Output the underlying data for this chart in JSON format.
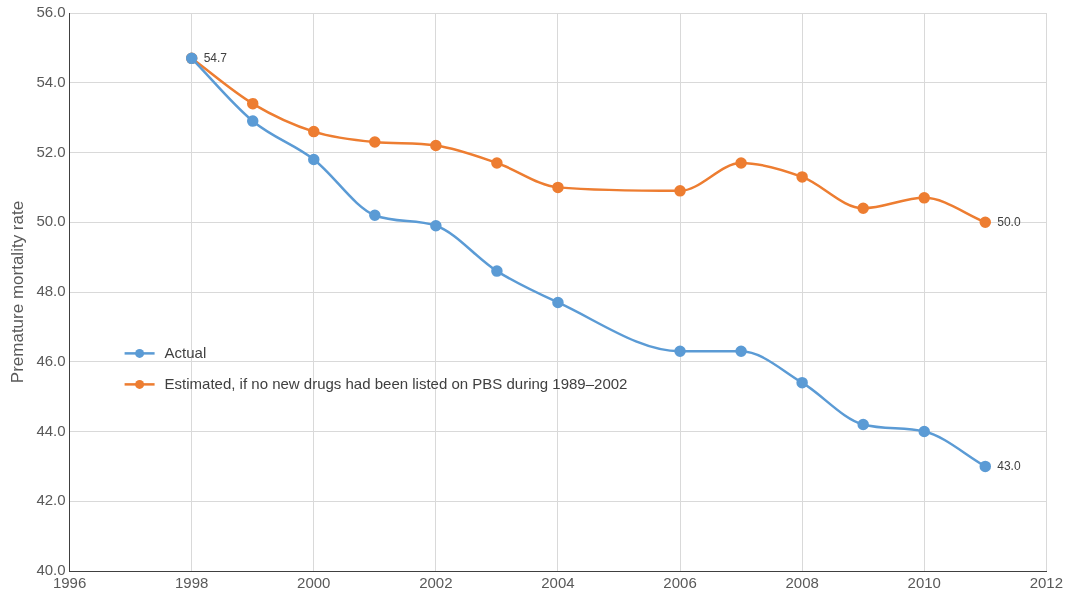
{
  "chart_data": {
    "type": "line",
    "ylabel": "Premature mortality rate",
    "x": [
      1998,
      1999,
      2000,
      2001,
      2002,
      2003,
      2004,
      2006,
      2007,
      2008,
      2009,
      2010,
      2011
    ],
    "series": [
      {
        "name": "Actual",
        "color": "#5b9bd5",
        "values": [
          54.7,
          52.9,
          51.8,
          50.2,
          49.9,
          48.6,
          47.7,
          46.3,
          46.3,
          45.4,
          44.2,
          44.0,
          43.0
        ],
        "value_labels": [
          null,
          null,
          null,
          null,
          null,
          null,
          null,
          null,
          null,
          null,
          null,
          null,
          "43.0"
        ]
      },
      {
        "name": "Estimated, if no new drugs had been listed on PBS during 1989–2002",
        "color": "#ed7d31",
        "values": [
          54.7,
          53.4,
          52.6,
          52.3,
          52.2,
          51.7,
          51.0,
          50.9,
          51.7,
          51.3,
          50.4,
          50.7,
          50.0
        ],
        "value_labels": [
          "54.7",
          null,
          null,
          null,
          null,
          null,
          null,
          null,
          null,
          null,
          null,
          null,
          "50.0"
        ]
      }
    ],
    "xlim": [
      1996,
      2012
    ],
    "xticks": [
      1996,
      1998,
      2000,
      2002,
      2004,
      2006,
      2008,
      2010,
      2012
    ],
    "ylim": [
      40,
      56
    ],
    "yticks": [
      {
        "value": 40,
        "label": "40.0"
      },
      {
        "value": 42,
        "label": "42.0"
      },
      {
        "value": 44,
        "label": "44.0"
      },
      {
        "value": 46,
        "label": "46.0"
      },
      {
        "value": 48,
        "label": "48.0"
      },
      {
        "value": 50,
        "label": "50.0"
      },
      {
        "value": 52,
        "label": "52.0"
      },
      {
        "value": 54,
        "label": "54.0"
      },
      {
        "value": 56,
        "label": "56.0"
      }
    ],
    "grid": true,
    "legend": "left",
    "marker": "circle",
    "line_style": "solid"
  }
}
